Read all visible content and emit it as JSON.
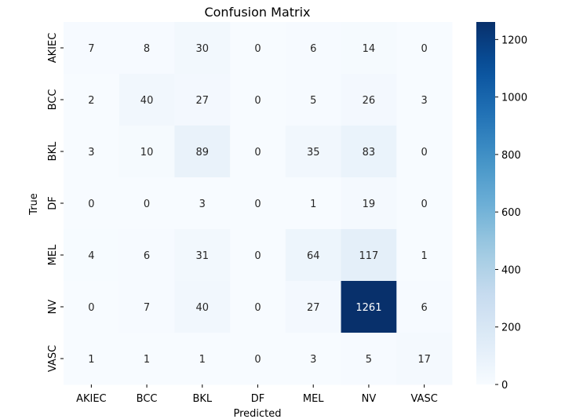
{
  "chart_data": {
    "type": "heatmap",
    "title": "Confusion Matrix",
    "xlabel": "Predicted",
    "ylabel": "True",
    "x_categories": [
      "AKIEC",
      "BCC",
      "BKL",
      "DF",
      "MEL",
      "NV",
      "VASC"
    ],
    "y_categories": [
      "AKIEC",
      "BCC",
      "BKL",
      "DF",
      "MEL",
      "NV",
      "VASC"
    ],
    "values": [
      [
        7,
        8,
        30,
        0,
        6,
        14,
        0
      ],
      [
        2,
        40,
        27,
        0,
        5,
        26,
        3
      ],
      [
        3,
        10,
        89,
        0,
        35,
        83,
        0
      ],
      [
        0,
        0,
        3,
        0,
        1,
        19,
        0
      ],
      [
        4,
        6,
        31,
        0,
        64,
        117,
        1
      ],
      [
        0,
        7,
        40,
        0,
        27,
        1261,
        6
      ],
      [
        1,
        1,
        1,
        0,
        3,
        5,
        17
      ]
    ],
    "colormap": "Blues",
    "vmin": 0,
    "vmax": 1261,
    "colorbar_ticks": [
      0,
      200,
      400,
      600,
      800,
      1000,
      1200
    ],
    "low_color": "#f7fbff",
    "high_color": "#08306b"
  }
}
